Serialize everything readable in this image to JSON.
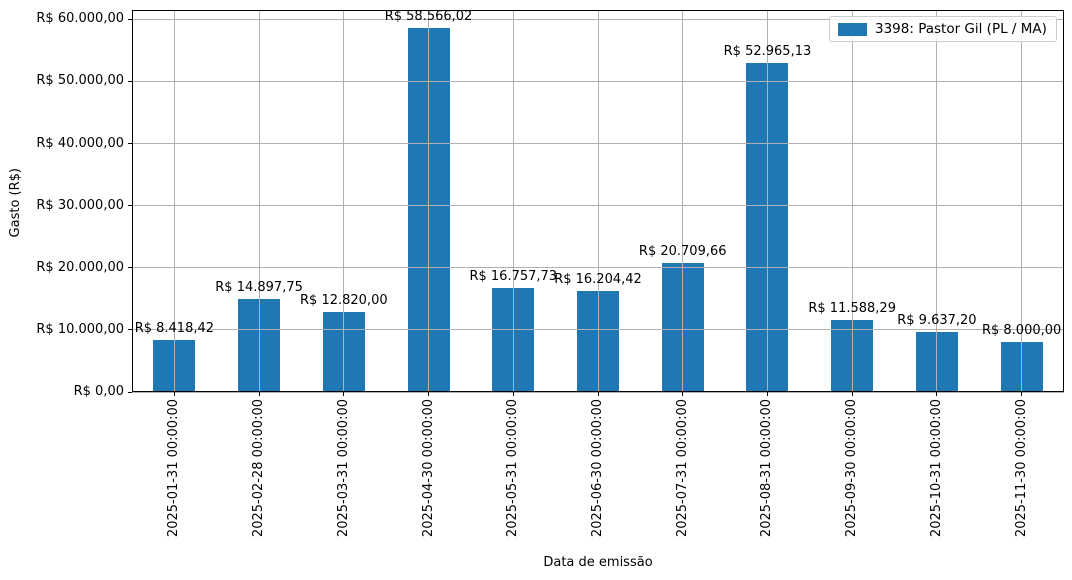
{
  "chart_data": {
    "type": "bar",
    "title": "",
    "xlabel": "Data de emissão",
    "ylabel": "Gasto (R$)",
    "legend_label": "3398: Pastor Gil (PL / MA)",
    "legend_position": "upper right",
    "grid": true,
    "categories": [
      "2025-01-31 00:00:00",
      "2025-02-28 00:00:00",
      "2025-03-31 00:00:00",
      "2025-04-30 00:00:00",
      "2025-05-31 00:00:00",
      "2025-06-30 00:00:00",
      "2025-07-31 00:00:00",
      "2025-08-31 00:00:00",
      "2025-09-30 00:00:00",
      "2025-10-31 00:00:00",
      "2025-11-30 00:00:00"
    ],
    "series": [
      {
        "name": "3398: Pastor Gil (PL / MA)",
        "values": [
          8418.42,
          14897.75,
          12820.0,
          58566.02,
          16757.73,
          16204.42,
          20709.66,
          52965.13,
          11588.29,
          9637.2,
          8000.0
        ]
      }
    ],
    "bar_labels": [
      "R$ 8.418,42",
      "R$ 14.897,75",
      "R$ 12.820,00",
      "R$ 58.566,02",
      "R$ 16.757,73",
      "R$ 16.204,42",
      "R$ 20.709,66",
      "R$ 52.965,13",
      "R$ 11.588,29",
      "R$ 9.637,20",
      "R$ 8.000,00"
    ],
    "y_ticks": [
      {
        "value": 0,
        "label": "R$ 0,00"
      },
      {
        "value": 10000,
        "label": "R$ 10.000,00"
      },
      {
        "value": 20000,
        "label": "R$ 20.000,00"
      },
      {
        "value": 30000,
        "label": "R$ 30.000,00"
      },
      {
        "value": 40000,
        "label": "R$ 40.000,00"
      },
      {
        "value": 50000,
        "label": "R$ 50.000,00"
      },
      {
        "value": 60000,
        "label": "R$ 60.000,00"
      }
    ],
    "ylim": [
      0,
      61494
    ],
    "bar_color": "#1f77b4",
    "grid_color": "#b0b0b0",
    "spine_color": "#000000"
  }
}
